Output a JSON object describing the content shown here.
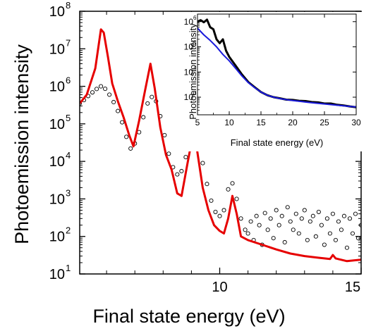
{
  "chart_data": [
    {
      "type": "scatter",
      "xlabel": "Final state energy (eV)",
      "ylabel": "Photoemission intensity",
      "xlim": [
        5.05,
        15
      ],
      "ylim": [
        10,
        100000000
      ],
      "yscale": "log",
      "x_ticks": [
        10,
        15
      ],
      "y_ticks": [
        {
          "base": "10",
          "exp": "1"
        },
        {
          "base": "10",
          "exp": "2"
        },
        {
          "base": "10",
          "exp": "3"
        },
        {
          "base": "10",
          "exp": "4"
        },
        {
          "base": "10",
          "exp": "5"
        },
        {
          "base": "10",
          "exp": "6"
        },
        {
          "base": "10",
          "exp": "7"
        },
        {
          "base": "10",
          "exp": "8"
        }
      ],
      "grid": false,
      "series": [
        {
          "style": "open circles",
          "color": "#000000",
          "points": [
            [
              5.05,
              350000.0
            ],
            [
              5.2,
              430000.0
            ],
            [
              5.35,
              550000.0
            ],
            [
              5.5,
              690000.0
            ],
            [
              5.65,
              850000.0
            ],
            [
              5.8,
              1000000.0
            ],
            [
              5.95,
              860000.0
            ],
            [
              6.1,
              600000.0
            ],
            [
              6.25,
              380000.0
            ],
            [
              6.4,
              220000.0
            ],
            [
              6.55,
              110000.0
            ],
            [
              6.7,
              45000.0
            ],
            [
              6.85,
              22000.0
            ],
            [
              7.0,
              30000.0
            ],
            [
              7.15,
              60000.0
            ],
            [
              7.3,
              150000.0
            ],
            [
              7.45,
              350000.0
            ],
            [
              7.6,
              520000.0
            ],
            [
              7.75,
              400000.0
            ],
            [
              7.9,
              160000.0
            ],
            [
              8.05,
              50000.0
            ],
            [
              8.2,
              16000.0
            ],
            [
              8.35,
              7000.0
            ],
            [
              8.5,
              4500.0
            ],
            [
              8.65,
              5500.0
            ],
            [
              8.8,
              13000.0
            ],
            [
              8.95,
              38000.0
            ],
            [
              9.1,
              52000.0
            ],
            [
              9.25,
              30000.0
            ],
            [
              9.4,
              9000.0
            ],
            [
              9.55,
              2500.0
            ],
            [
              9.7,
              900
            ],
            [
              9.85,
              450
            ],
            [
              10.0,
              350
            ],
            [
              10.15,
              500
            ],
            [
              10.3,
              1800
            ],
            [
              10.45,
              2600
            ],
            [
              10.6,
              1000
            ],
            [
              10.75,
              300
            ],
            [
              10.9,
              150
            ],
            [
              11.0,
              120
            ],
            [
              11.1,
              250
            ],
            [
              11.2,
              80
            ],
            [
              11.3,
              350
            ],
            [
              11.4,
              200
            ],
            [
              11.5,
              60
            ],
            [
              11.6,
              420
            ],
            [
              11.7,
              150
            ],
            [
              11.8,
              300
            ],
            [
              11.9,
              90
            ],
            [
              12.0,
              500
            ],
            [
              12.1,
              200
            ],
            [
              12.2,
              350
            ],
            [
              12.3,
              70
            ],
            [
              12.4,
              600
            ],
            [
              12.5,
              250
            ],
            [
              12.6,
              150
            ],
            [
              12.7,
              400
            ],
            [
              12.8,
              120
            ],
            [
              12.9,
              300
            ],
            [
              13.0,
              500
            ],
            [
              13.1,
              80
            ],
            [
              13.2,
              250
            ],
            [
              13.3,
              350
            ],
            [
              13.4,
              100
            ],
            [
              13.5,
              450
            ],
            [
              13.6,
              200
            ],
            [
              13.7,
              60
            ],
            [
              13.8,
              300
            ],
            [
              13.9,
              120
            ],
            [
              14.0,
              400
            ],
            [
              14.1,
              80
            ],
            [
              14.2,
              250
            ],
            [
              14.3,
              150
            ],
            [
              14.4,
              350
            ],
            [
              14.5,
              50
            ],
            [
              14.6,
              300
            ],
            [
              14.7,
              120
            ],
            [
              14.8,
              400
            ],
            [
              14.9,
              90
            ],
            [
              15.0,
              200
            ]
          ]
        },
        {
          "style": "line",
          "color": "#e60000",
          "points": [
            [
              5.05,
              350000.0
            ],
            [
              5.3,
              600000.0
            ],
            [
              5.6,
              3000000.0
            ],
            [
              5.8,
              33000000.0
            ],
            [
              5.9,
              27000000.0
            ],
            [
              6.05,
              6000000.0
            ],
            [
              6.2,
              1200000.0
            ],
            [
              6.4,
              400000.0
            ],
            [
              6.6,
              150000.0
            ],
            [
              6.8,
              50000.0
            ],
            [
              6.95,
              25000.0
            ],
            [
              7.15,
              120000.0
            ],
            [
              7.35,
              700000.0
            ],
            [
              7.55,
              4000000.0
            ],
            [
              7.7,
              900000.0
            ],
            [
              7.9,
              80000.0
            ],
            [
              8.1,
              15000.0
            ],
            [
              8.3,
              6000.0
            ],
            [
              8.5,
              1400.0
            ],
            [
              8.65,
              1200.0
            ],
            [
              8.85,
              8000.0
            ],
            [
              9.05,
              50000.0
            ],
            [
              9.2,
              20000.0
            ],
            [
              9.4,
              2000.0
            ],
            [
              9.6,
              500
            ],
            [
              9.8,
              200
            ],
            [
              10.0,
              140
            ],
            [
              10.15,
              120
            ],
            [
              10.3,
              300
            ],
            [
              10.45,
              1200
            ],
            [
              10.6,
              400
            ],
            [
              10.75,
              100
            ],
            [
              11.0,
              80
            ],
            [
              11.5,
              60
            ],
            [
              12.0,
              45
            ],
            [
              12.5,
              35
            ],
            [
              13.0,
              30
            ],
            [
              13.5,
              27
            ],
            [
              13.9,
              25
            ],
            [
              14.0,
              32
            ],
            [
              14.1,
              26
            ],
            [
              14.5,
              22
            ],
            [
              15.0,
              24
            ]
          ]
        }
      ]
    },
    {
      "type": "line",
      "inset": true,
      "xlabel": "Final state energy (eV)",
      "ylabel": "Photoemission intensity",
      "xlim": [
        5,
        30
      ],
      "ylim": [
        200,
        2000000
      ],
      "yscale": "log",
      "x_ticks": [
        5,
        10,
        15,
        20,
        25,
        30
      ],
      "y_ticks": [
        {
          "base": "10",
          "exp": "3"
        },
        {
          "base": "10",
          "exp": "4"
        },
        {
          "base": "10",
          "exp": "5"
        },
        {
          "base": "10",
          "exp": "6"
        }
      ],
      "series": [
        {
          "color": "#000000",
          "points": [
            [
              5,
              1000000.0
            ],
            [
              5.5,
              1150000.0
            ],
            [
              6,
              950000.0
            ],
            [
              6.5,
              1200000.0
            ],
            [
              7,
              600000.0
            ],
            [
              7.5,
              500000.0
            ],
            [
              8,
              200000.0
            ],
            [
              8.5,
              140000.0
            ],
            [
              9,
              200000.0
            ],
            [
              9.5,
              70000.0
            ],
            [
              10,
              40000.0
            ],
            [
              11,
              18000.0
            ],
            [
              12,
              8000.0
            ],
            [
              13,
              4000.0
            ],
            [
              14,
              2500.0
            ],
            [
              15,
              1600.0
            ],
            [
              16,
              1200.0
            ],
            [
              17,
              1000.0
            ],
            [
              18,
              900
            ],
            [
              19,
              800
            ],
            [
              20,
              780
            ],
            [
              21,
              720
            ],
            [
              22,
              700
            ],
            [
              23,
              640
            ],
            [
              24,
              620
            ],
            [
              25,
              560
            ],
            [
              26,
              560
            ],
            [
              27,
              500
            ],
            [
              28,
              470
            ],
            [
              29,
              430
            ],
            [
              30,
              400
            ]
          ]
        },
        {
          "color": "#1a1adb",
          "points": [
            [
              5,
              550000.0
            ],
            [
              6,
              300000.0
            ],
            [
              7,
              180000.0
            ],
            [
              8,
              100000.0
            ],
            [
              9,
              50000.0
            ],
            [
              10,
              28000.0
            ],
            [
              11,
              14000.0
            ],
            [
              12,
              7000.0
            ],
            [
              13,
              3800.0
            ],
            [
              14,
              2400.0
            ],
            [
              15,
              1600.0
            ],
            [
              16,
              1200.0
            ],
            [
              17,
              1000.0
            ],
            [
              18,
              880
            ],
            [
              19,
              800
            ],
            [
              20,
              740
            ],
            [
              21,
              690
            ],
            [
              22,
              640
            ],
            [
              23,
              600
            ],
            [
              24,
              570
            ],
            [
              25,
              540
            ],
            [
              26,
              510
            ],
            [
              27,
              480
            ],
            [
              28,
              455
            ],
            [
              29,
              430
            ],
            [
              30,
              410
            ]
          ]
        }
      ]
    }
  ]
}
